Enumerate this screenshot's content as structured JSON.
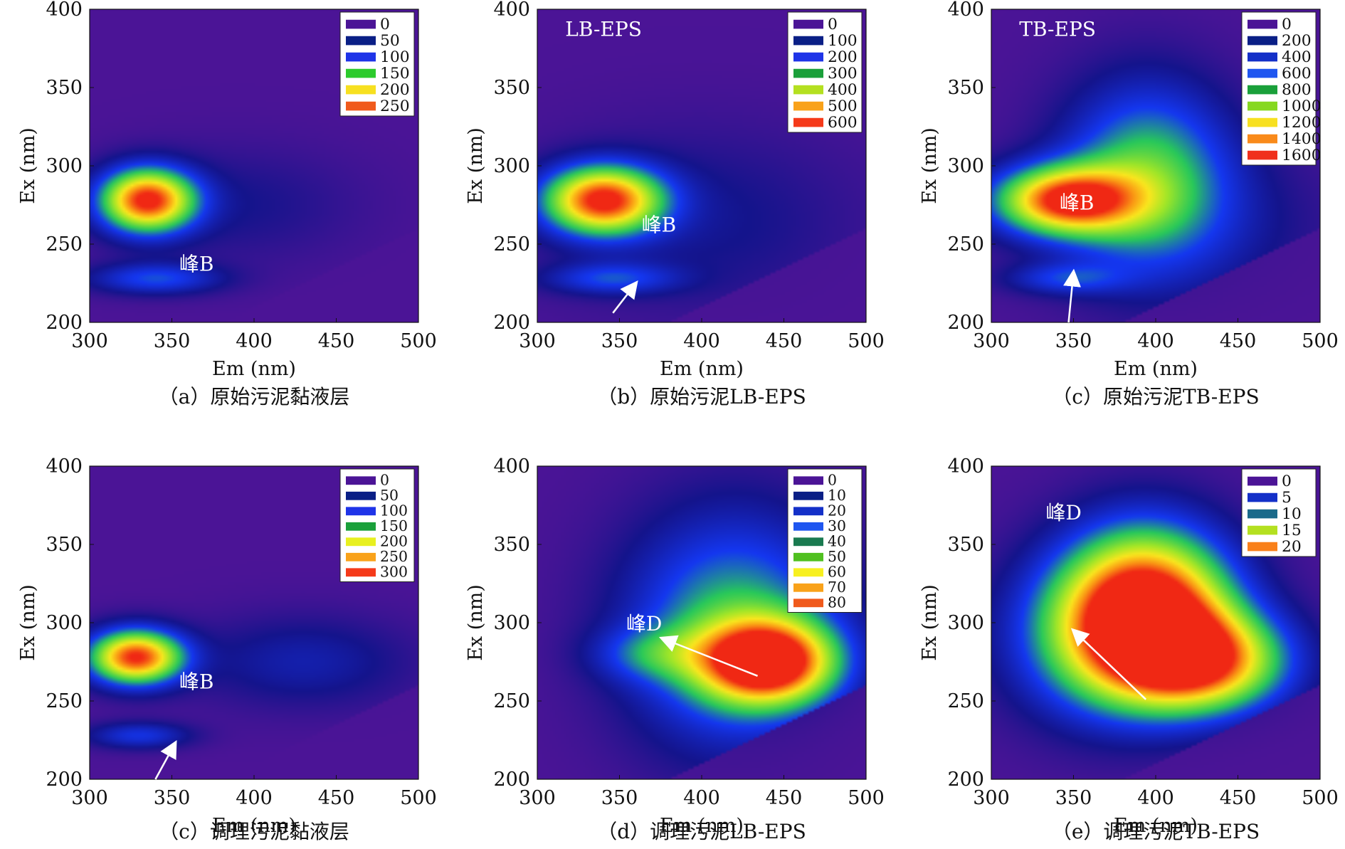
{
  "figure": {
    "panels": [
      {
        "caption": "（a）原始污泥黏液层",
        "label": "",
        "annotations": [
          {
            "text": "峰B",
            "x": 365,
            "y": 233
          }
        ],
        "arrow": null
      },
      {
        "caption": "（b）原始污泥LB-EPS",
        "label": "LB-EPS",
        "annotations": [
          {
            "text": "峰B",
            "x": 374,
            "y": 258
          }
        ],
        "arrow": {
          "from": [
            346,
            206
          ],
          "to": [
            360,
            225
          ]
        }
      },
      {
        "caption": "（c）原始污泥TB-EPS",
        "label": "TB-EPS",
        "annotations": [
          {
            "text": "峰B",
            "x": 352,
            "y": 272
          }
        ],
        "arrow": {
          "from": [
            347,
            200
          ],
          "to": [
            350,
            232
          ]
        }
      },
      {
        "caption": "（c）调理污泥黏液层",
        "label": "",
        "annotations": [
          {
            "text": "峰B",
            "x": 365,
            "y": 258
          }
        ],
        "arrow": {
          "from": [
            340,
            200
          ],
          "to": [
            352,
            223
          ]
        }
      },
      {
        "caption": "（d）调理污泥LB-EPS",
        "label": "",
        "annotations": [
          {
            "text": "峰D",
            "x": 365,
            "y": 295
          }
        ],
        "arrow": {
          "from": [
            434,
            266
          ],
          "to": [
            376,
            290
          ]
        }
      },
      {
        "caption": "（e）调理污泥TB-EPS",
        "label": "",
        "annotations": [
          {
            "text": "峰D",
            "x": 344,
            "y": 366
          }
        ],
        "arrow": {
          "from": [
            394,
            251
          ],
          "to": [
            350,
            295
          ]
        }
      }
    ]
  },
  "chart_data": [
    {
      "type": "heatmap",
      "panel": "a",
      "title": "",
      "xlabel": "Em (nm)",
      "ylabel": "Ex (nm)",
      "xlim": [
        300,
        500
      ],
      "ylim": [
        200,
        400
      ],
      "xticks": [
        "300",
        "350",
        "400",
        "450",
        "500"
      ],
      "yticks": [
        "200",
        "250",
        "300",
        "350",
        "400"
      ],
      "legend": [
        "0",
        "50",
        "100",
        "150",
        "200",
        "250"
      ],
      "legend_colors": [
        "#4b1496",
        "#0a1f86",
        "#1f34e8",
        "#2ccb2c",
        "#f7e020",
        "#f05a1c"
      ],
      "vmax": 270,
      "peaks": [
        {
          "em": 335,
          "ex": 278,
          "value": 270,
          "sem": 20,
          "sex": 14
        },
        {
          "em": 340,
          "ex": 228,
          "value": 80,
          "sem": 28,
          "sex": 7
        },
        {
          "em": 390,
          "ex": 275,
          "value": 25,
          "sem": 50,
          "sex": 25
        }
      ]
    },
    {
      "type": "heatmap",
      "panel": "b",
      "title": "",
      "xlabel": "Em (nm)",
      "ylabel": "Ex (nm)",
      "xlim": [
        300,
        500
      ],
      "ylim": [
        200,
        400
      ],
      "xticks": [
        "300",
        "350",
        "400",
        "450",
        "500"
      ],
      "yticks": [
        "200",
        "250",
        "300",
        "350",
        "400"
      ],
      "legend": [
        "0",
        "100",
        "200",
        "300",
        "400",
        "500",
        "600"
      ],
      "legend_colors": [
        "#4b1496",
        "#0a1f86",
        "#1f34e8",
        "#1aa03a",
        "#b4e020",
        "#f9a21a",
        "#f53a1a"
      ],
      "vmax": 640,
      "peaks": [
        {
          "em": 340,
          "ex": 278,
          "value": 640,
          "sem": 25,
          "sex": 15
        },
        {
          "em": 345,
          "ex": 228,
          "value": 170,
          "sem": 28,
          "sex": 7
        },
        {
          "em": 400,
          "ex": 265,
          "value": 70,
          "sem": 65,
          "sex": 40
        }
      ]
    },
    {
      "type": "heatmap",
      "panel": "c",
      "title": "",
      "xlabel": "Em (nm)",
      "ylabel": "Ex (nm)",
      "xlim": [
        300,
        500
      ],
      "ylim": [
        200,
        400
      ],
      "xticks": [
        "300",
        "350",
        "400",
        "450",
        "500"
      ],
      "yticks": [
        "200",
        "250",
        "300",
        "350",
        "400"
      ],
      "legend": [
        "0",
        "200",
        "400",
        "600",
        "800",
        "1000",
        "1200",
        "1400",
        "1600"
      ],
      "legend_colors": [
        "#4b1496",
        "#0a1f86",
        "#1430c8",
        "#1f56f0",
        "#1aa03a",
        "#86d820",
        "#f7e020",
        "#f98a1a",
        "#f0301c"
      ],
      "vmax": 1700,
      "peaks": [
        {
          "em": 345,
          "ex": 278,
          "value": 1600,
          "sem": 30,
          "sex": 15
        },
        {
          "em": 395,
          "ex": 295,
          "value": 800,
          "sem": 35,
          "sex": 40
        },
        {
          "em": 345,
          "ex": 228,
          "value": 400,
          "sem": 25,
          "sex": 7
        },
        {
          "em": 420,
          "ex": 260,
          "value": 200,
          "sem": 60,
          "sex": 35
        }
      ]
    },
    {
      "type": "heatmap",
      "panel": "c2",
      "title": "",
      "xlabel": "Em (nm)",
      "ylabel": "Ex (nm)",
      "xlim": [
        300,
        500
      ],
      "ylim": [
        200,
        400
      ],
      "xticks": [
        "300",
        "350",
        "400",
        "450",
        "500"
      ],
      "yticks": [
        "200",
        "250",
        "300",
        "350",
        "400"
      ],
      "legend": [
        "0",
        "50",
        "100",
        "150",
        "200",
        "250",
        "300"
      ],
      "legend_colors": [
        "#4b1496",
        "#0a1f86",
        "#1f34e8",
        "#1aa03a",
        "#e8f020",
        "#f9a21a",
        "#f53a1a"
      ],
      "vmax": 320,
      "peaks": [
        {
          "em": 328,
          "ex": 278,
          "value": 320,
          "sem": 20,
          "sex": 12
        },
        {
          "em": 330,
          "ex": 228,
          "value": 80,
          "sem": 22,
          "sex": 6
        },
        {
          "em": 430,
          "ex": 275,
          "value": 50,
          "sem": 45,
          "sex": 20
        }
      ]
    },
    {
      "type": "heatmap",
      "panel": "d",
      "title": "",
      "xlabel": "Em (nm)",
      "ylabel": "Ex (nm)",
      "xlim": [
        300,
        500
      ],
      "ylim": [
        200,
        400
      ],
      "xticks": [
        "300",
        "350",
        "400",
        "450",
        "500"
      ],
      "yticks": [
        "200",
        "250",
        "300",
        "350",
        "400"
      ],
      "legend": [
        "0",
        "10",
        "20",
        "30",
        "40",
        "50",
        "60",
        "70",
        "80"
      ],
      "legend_colors": [
        "#4b1496",
        "#0a1f86",
        "#1430c8",
        "#1f56f0",
        "#1a7a50",
        "#50c020",
        "#f7f020",
        "#f9a21a",
        "#f05a1c"
      ],
      "vmax": 85,
      "peaks": [
        {
          "em": 440,
          "ex": 275,
          "value": 85,
          "sem": 28,
          "sex": 18
        },
        {
          "em": 420,
          "ex": 295,
          "value": 40,
          "sem": 45,
          "sex": 50
        },
        {
          "em": 370,
          "ex": 280,
          "value": 20,
          "sem": 25,
          "sex": 12
        }
      ]
    },
    {
      "type": "heatmap",
      "panel": "e",
      "title": "",
      "xlabel": "Em (nm)",
      "ylabel": "Ex (nm)",
      "xlim": [
        300,
        500
      ],
      "ylim": [
        200,
        400
      ],
      "xticks": [
        "300",
        "350",
        "400",
        "450",
        "500"
      ],
      "yticks": [
        "200",
        "250",
        "300",
        "350",
        "400"
      ],
      "legend": [
        "0",
        "5",
        "10",
        "15",
        "20"
      ],
      "legend_colors": [
        "#4b1496",
        "#1430c8",
        "#1a6a8a",
        "#b4e020",
        "#f9801a"
      ],
      "vmax": 22,
      "peaks": [
        {
          "em": 395,
          "ex": 310,
          "value": 22,
          "sem": 35,
          "sex": 35
        },
        {
          "em": 430,
          "ex": 275,
          "value": 18,
          "sem": 35,
          "sex": 22
        },
        {
          "em": 370,
          "ex": 290,
          "value": 10,
          "sem": 40,
          "sex": 35
        }
      ]
    }
  ]
}
